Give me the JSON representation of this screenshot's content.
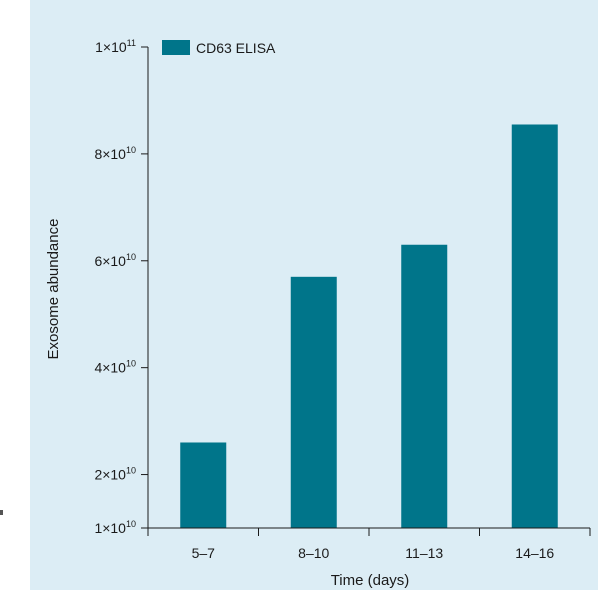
{
  "colors": {
    "bar": "#00758a",
    "panel": "#dcedf5",
    "axis": "#1a1a1a"
  },
  "chart_data": {
    "type": "bar",
    "categories": [
      "5–7",
      "8–10",
      "11–13",
      "14–16"
    ],
    "series": [
      {
        "name": "CD63 ELISA",
        "values": [
          26000000000,
          57000000000,
          63000000000,
          85500000000
        ]
      }
    ],
    "xlabel": "Time (days)",
    "ylabel": "Exosome abundance",
    "ylim": [
      10000000000,
      100000000000
    ],
    "yticks": [
      {
        "value": 10000000000,
        "mantissa": "1×10",
        "exponent": "10"
      },
      {
        "value": 20000000000,
        "mantissa": "2×10",
        "exponent": "10"
      },
      {
        "value": 40000000000,
        "mantissa": "4×10",
        "exponent": "10"
      },
      {
        "value": 60000000000,
        "mantissa": "6×10",
        "exponent": "10"
      },
      {
        "value": 80000000000,
        "mantissa": "8×10",
        "exponent": "10"
      },
      {
        "value": 100000000000,
        "mantissa": "1×10",
        "exponent": "11"
      }
    ],
    "grid": false,
    "legend_position": "top-left"
  }
}
